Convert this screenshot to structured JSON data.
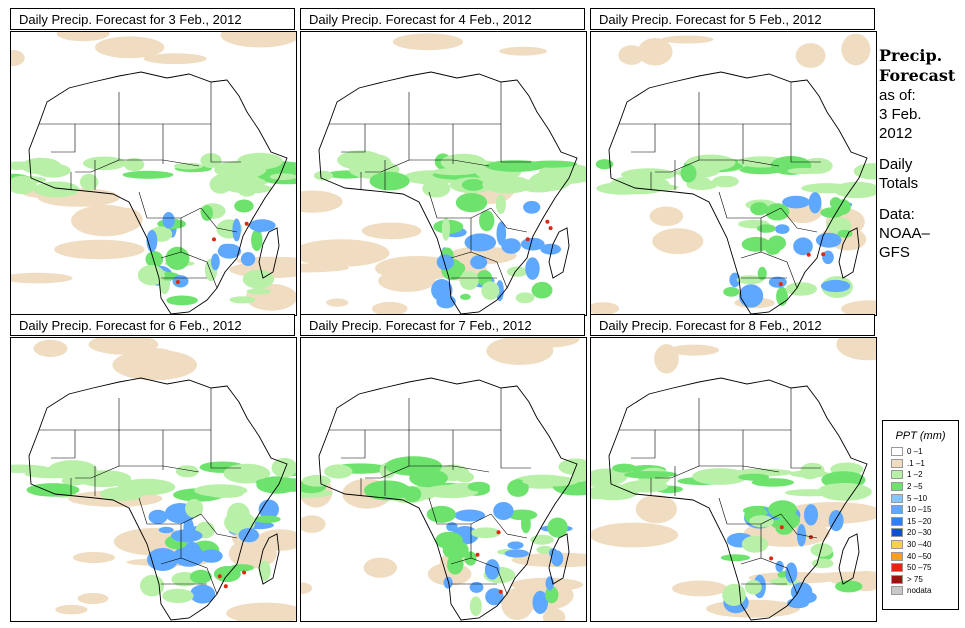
{
  "panels": [
    {
      "title": "Daily Precip. Forecast for  3 Feb., 2012"
    },
    {
      "title": "Daily Precip. Forecast for  4 Feb., 2012"
    },
    {
      "title": "Daily Precip. Forecast for  5 Feb., 2012"
    },
    {
      "title": "Daily Precip. Forecast for  6 Feb., 2012"
    },
    {
      "title": "Daily Precip. Forecast for  7 Feb., 2012"
    },
    {
      "title": "Daily Precip. Forecast for  8 Feb., 2012"
    }
  ],
  "side_info": {
    "heading_1": "Precip.",
    "heading_2": "Forecast",
    "asof": "as of:",
    "date_1": "3 Feb.",
    "date_2": "2012",
    "type_1": "Daily",
    "type_2": "Totals",
    "data_1": "Data:",
    "data_2": "NOAA–",
    "data_3": "GFS"
  },
  "legend": {
    "title": "PPT (mm)",
    "items": [
      {
        "label": "0 –1",
        "color": "#ffffff"
      },
      {
        "label": ".1 –1",
        "color": "#f0dcc0"
      },
      {
        "label": "1 –2",
        "color": "#b8f0a8"
      },
      {
        "label": "2 –5",
        "color": "#6de36d"
      },
      {
        "label": "5 –10",
        "color": "#86c6ff"
      },
      {
        "label": "10 –15",
        "color": "#5ea8ff"
      },
      {
        "label": "15 –20",
        "color": "#2f80f0"
      },
      {
        "label": "20 –30",
        "color": "#1050d0"
      },
      {
        "label": "30 –40",
        "color": "#f6d24a"
      },
      {
        "label": "40 –50",
        "color": "#f5a020"
      },
      {
        "label": "50 –75",
        "color": "#e02810"
      },
      {
        "label": "> 75",
        "color": "#a01010"
      },
      {
        "label": "nodata",
        "color": "#c8c8c8"
      }
    ]
  },
  "map_colors": {
    "land_dry": "#f0dcc0",
    "light_rain": "#b8f0a8",
    "moderate_rain": "#6de36d",
    "heavy_rain": "#5ea8ff",
    "extreme_rain": "#e02810",
    "borders": "#000000"
  }
}
